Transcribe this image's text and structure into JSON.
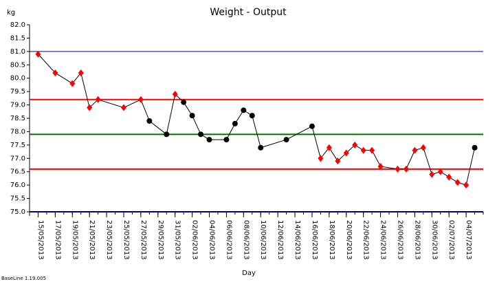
{
  "chart_data": {
    "type": "line",
    "title": "Weight - Output",
    "y_label": "kg",
    "x_label": "Day",
    "footnote": "BaseLine 1.19.005",
    "x": [
      "15/05/2013",
      "17/05/2013",
      "19/05/2013",
      "20/05/2013",
      "21/05/2013",
      "22/05/2013",
      "25/05/2013",
      "27/05/2013",
      "28/05/2013",
      "30/05/2013",
      "31/05/2013",
      "01/06/2013",
      "02/06/2013",
      "03/06/2013",
      "04/06/2013",
      "06/06/2013",
      "07/06/2013",
      "08/06/2013",
      "09/06/2013",
      "10/06/2013",
      "13/06/2013",
      "16/06/2013",
      "17/06/2013",
      "18/06/2013",
      "19/06/2013",
      "20/06/2013",
      "21/06/2013",
      "22/06/2013",
      "23/06/2013",
      "24/06/2013",
      "26/06/2013",
      "27/06/2013",
      "28/06/2013",
      "29/06/2013",
      "30/06/2013",
      "01/07/2013",
      "02/07/2013",
      "03/07/2013",
      "04/07/2013",
      "05/07/2013"
    ],
    "series": [
      {
        "color": "#000000",
        "values": [
          80.9,
          80.2,
          79.8,
          80.2,
          78.9,
          79.2,
          78.9,
          79.2,
          78.4,
          77.9,
          79.4,
          79.1,
          78.6,
          77.9,
          77.7,
          77.7,
          78.3,
          78.8,
          78.6,
          77.4,
          77.7,
          78.2,
          77.0,
          77.4,
          76.9,
          77.2,
          77.5,
          77.3,
          77.3,
          76.7,
          76.6,
          76.6,
          77.3,
          77.4,
          76.4,
          76.5,
          76.3,
          76.1,
          76.0,
          77.4
        ],
        "marker_colors": [
          "#ff0000",
          "#ff0000",
          "#ff0000",
          "#ff0000",
          "#ff0000",
          "#ff0000",
          "#ff0000",
          "#ff0000",
          "#000000",
          "#000000",
          "#ff0000",
          "#000000",
          "#000000",
          "#000000",
          "#000000",
          "#000000",
          "#000000",
          "#000000",
          "#000000",
          "#000000",
          "#000000",
          "#000000",
          "#ff0000",
          "#ff0000",
          "#ff0000",
          "#ff0000",
          "#ff0000",
          "#ff0000",
          "#ff0000",
          "#ff0000",
          "#ff0000",
          "#ff0000",
          "#ff0000",
          "#ff0000",
          "#ff0000",
          "#ff0000",
          "#ff0000",
          "#ff0000",
          "#ff0000",
          "#000000"
        ]
      }
    ],
    "reference_lines": [
      {
        "value": 81.0,
        "color": "#000080"
      },
      {
        "value": 79.2,
        "color": "#ff0000"
      },
      {
        "value": 77.9,
        "color": "#007000"
      },
      {
        "value": 76.6,
        "color": "#ff0000"
      }
    ],
    "xlim": [
      "14/05/2013",
      "06/07/2013"
    ],
    "xticks": [
      "15/05/2013",
      "17/05/2013",
      "19/05/2013",
      "21/05/2013",
      "23/05/2013",
      "25/05/2013",
      "27/05/2013",
      "29/05/2013",
      "31/05/2013",
      "02/06/2013",
      "04/06/2013",
      "06/06/2013",
      "08/06/2013",
      "10/06/2013",
      "12/06/2013",
      "14/06/2013",
      "16/06/2013",
      "18/06/2013",
      "20/06/2013",
      "22/06/2013",
      "24/06/2013",
      "26/06/2013",
      "28/06/2013",
      "30/06/2013",
      "02/07/2013",
      "04/07/2013"
    ],
    "ylim": [
      75,
      82
    ],
    "yticks": [
      {
        "value": 75,
        "label": "75.0"
      },
      {
        "value": 75.5,
        "label": "75.5"
      },
      {
        "value": 76,
        "label": "76.0"
      },
      {
        "value": 76.5,
        "label": "76.5"
      },
      {
        "value": 77,
        "label": "77.0"
      },
      {
        "value": 77.5,
        "label": "77.5"
      },
      {
        "value": 78,
        "label": "78.0"
      },
      {
        "value": 78.5,
        "label": "78.5"
      },
      {
        "value": 79,
        "label": "79.0"
      },
      {
        "value": 79.5,
        "label": "79.5"
      },
      {
        "value": 80,
        "label": "80.0"
      },
      {
        "value": 80.5,
        "label": "80.5"
      },
      {
        "value": 81,
        "label": "81.0"
      },
      {
        "value": 81.5,
        "label": "81.5"
      },
      {
        "value": 82,
        "label": "82.0"
      }
    ]
  }
}
